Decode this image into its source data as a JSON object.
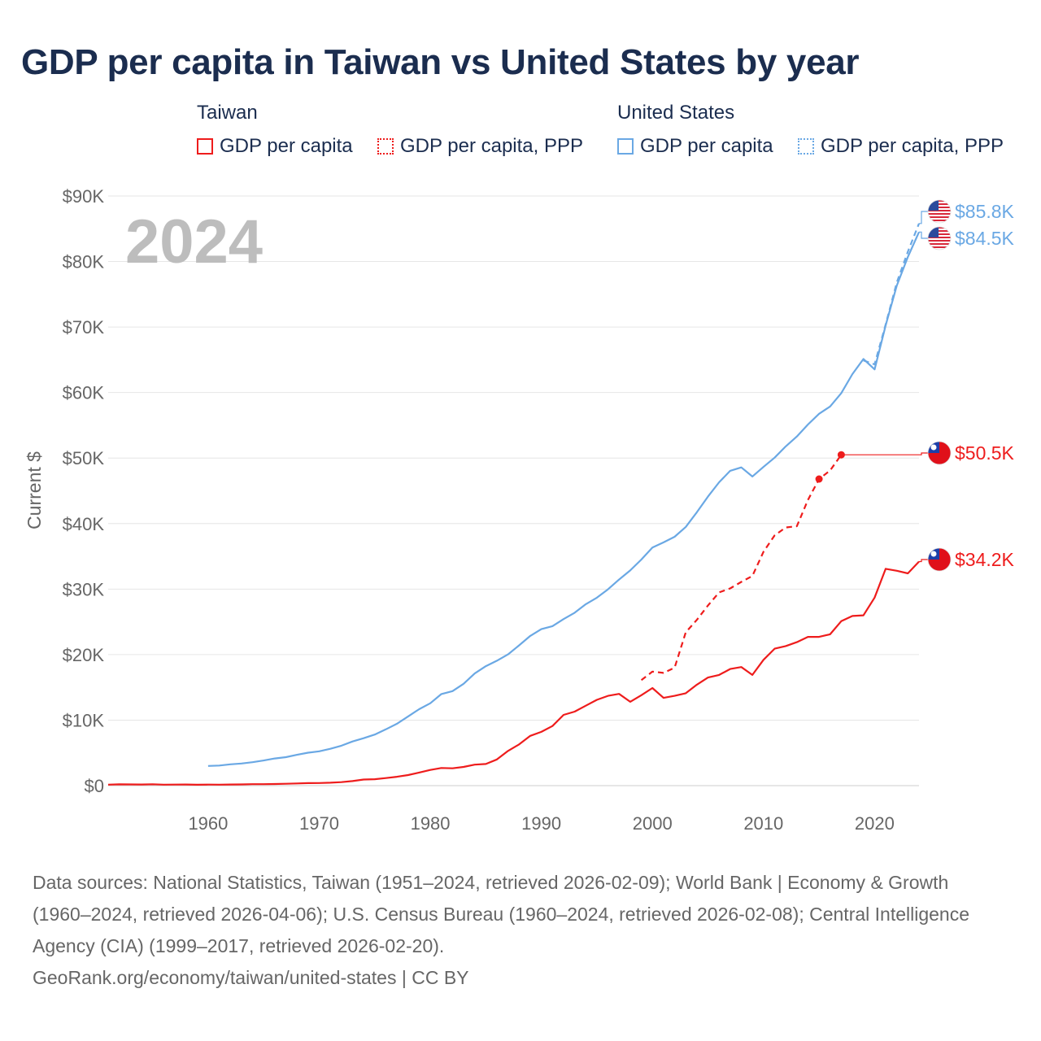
{
  "title": "GDP per capita in Taiwan vs United States by year",
  "legend": {
    "groups": [
      {
        "name": "Taiwan",
        "items": [
          "GDP per capita",
          "GDP per capita, PPP"
        ]
      },
      {
        "name": "United States",
        "items": [
          "GDP per capita",
          "GDP per capita, PPP"
        ]
      }
    ]
  },
  "colors": {
    "taiwan": "#ee1c1c",
    "us": "#6aa8e4",
    "grid": "#e6e6e6",
    "year": "#bdbdbd"
  },
  "year_watermark": "2024",
  "footer": {
    "sources": "Data sources: National Statistics, Taiwan (1951–2024, retrieved 2026-02-09); World Bank | Economy & Growth (1960–2024, retrieved 2026-04-06); U.S. Census Bureau (1960–2024, retrieved 2026-02-08); Central Intelligence Agency (CIA) (1999–2017, retrieved 2026-02-20).",
    "credit": "GeoRank.org/economy/taiwan/united-states | CC BY"
  },
  "chart_data": {
    "type": "line",
    "title": "GDP per capita in Taiwan vs United States by year",
    "ylabel": "Current $",
    "xlabel": "",
    "xlim": [
      1951,
      2024
    ],
    "ylim": [
      0,
      90000
    ],
    "x_ticks": [
      1960,
      1970,
      1980,
      1990,
      2000,
      2010,
      2020
    ],
    "x_tick_labels": [
      "1960",
      "1970",
      "1980",
      "1990",
      "2000",
      "2010",
      "2020"
    ],
    "y_ticks": [
      0,
      10000,
      20000,
      30000,
      40000,
      50000,
      60000,
      70000,
      80000,
      90000
    ],
    "y_tick_labels": [
      "$0",
      "$10K",
      "$20K",
      "$30K",
      "$40K",
      "$50K",
      "$60K",
      "$70K",
      "$80K",
      "$90K"
    ],
    "grid": true,
    "legend_position": "top",
    "series": [
      {
        "name": "Taiwan GDP per capita",
        "country": "Taiwan",
        "style": "solid",
        "color": "#ee1c1c",
        "end_label": "$34.2K",
        "points": [
          [
            1951,
            150
          ],
          [
            1952,
            200
          ],
          [
            1953,
            180
          ],
          [
            1954,
            170
          ],
          [
            1955,
            210
          ],
          [
            1956,
            150
          ],
          [
            1957,
            160
          ],
          [
            1958,
            170
          ],
          [
            1959,
            140
          ],
          [
            1960,
            160
          ],
          [
            1961,
            150
          ],
          [
            1962,
            170
          ],
          [
            1963,
            190
          ],
          [
            1964,
            220
          ],
          [
            1965,
            220
          ],
          [
            1966,
            250
          ],
          [
            1967,
            290
          ],
          [
            1968,
            330
          ],
          [
            1969,
            380
          ],
          [
            1970,
            400
          ],
          [
            1971,
            450
          ],
          [
            1972,
            530
          ],
          [
            1973,
            700
          ],
          [
            1974,
            930
          ],
          [
            1975,
            980
          ],
          [
            1976,
            1160
          ],
          [
            1977,
            1350
          ],
          [
            1978,
            1620
          ],
          [
            1979,
            2000
          ],
          [
            1980,
            2400
          ],
          [
            1981,
            2700
          ],
          [
            1982,
            2650
          ],
          [
            1983,
            2850
          ],
          [
            1984,
            3200
          ],
          [
            1985,
            3300
          ],
          [
            1986,
            4000
          ],
          [
            1987,
            5300
          ],
          [
            1988,
            6300
          ],
          [
            1989,
            7600
          ],
          [
            1990,
            8200
          ],
          [
            1991,
            9100
          ],
          [
            1992,
            10800
          ],
          [
            1993,
            11300
          ],
          [
            1994,
            12200
          ],
          [
            1995,
            13100
          ],
          [
            1996,
            13700
          ],
          [
            1997,
            14000
          ],
          [
            1998,
            12800
          ],
          [
            1999,
            13800
          ],
          [
            2000,
            14900
          ],
          [
            2001,
            13400
          ],
          [
            2002,
            13700
          ],
          [
            2003,
            14100
          ],
          [
            2004,
            15400
          ],
          [
            2005,
            16500
          ],
          [
            2006,
            16900
          ],
          [
            2007,
            17800
          ],
          [
            2008,
            18100
          ],
          [
            2009,
            16900
          ],
          [
            2010,
            19200
          ],
          [
            2011,
            20900
          ],
          [
            2012,
            21300
          ],
          [
            2013,
            21900
          ],
          [
            2014,
            22700
          ],
          [
            2015,
            22700
          ],
          [
            2016,
            23100
          ],
          [
            2017,
            25100
          ],
          [
            2018,
            25900
          ],
          [
            2019,
            26000
          ],
          [
            2020,
            28700
          ],
          [
            2021,
            33100
          ],
          [
            2022,
            32800
          ],
          [
            2023,
            32400
          ],
          [
            2024,
            34200
          ]
        ]
      },
      {
        "name": "Taiwan GDP per capita, PPP",
        "country": "Taiwan",
        "style": "dashed",
        "color": "#ee1c1c",
        "end_label": "$50.5K",
        "points": [
          [
            1999,
            16100
          ],
          [
            2000,
            17400
          ],
          [
            2001,
            17200
          ],
          [
            2002,
            18000
          ],
          [
            2003,
            23400
          ],
          [
            2004,
            25300
          ],
          [
            2005,
            27500
          ],
          [
            2006,
            29500
          ],
          [
            2007,
            30100
          ],
          [
            2008,
            31100
          ],
          [
            2009,
            32000
          ],
          [
            2010,
            35700
          ],
          [
            2011,
            38200
          ],
          [
            2012,
            39400
          ],
          [
            2013,
            39600
          ],
          [
            2014,
            43600
          ],
          [
            2015,
            46800
          ],
          [
            2016,
            48100
          ],
          [
            2017,
            50500
          ]
        ],
        "markers": [
          [
            2015,
            46800
          ],
          [
            2017,
            50500
          ]
        ]
      },
      {
        "name": "United States GDP per capita",
        "country": "United States",
        "style": "solid",
        "color": "#6aa8e4",
        "end_label": "$84.5K",
        "points": [
          [
            1960,
            3000
          ],
          [
            1961,
            3070
          ],
          [
            1962,
            3250
          ],
          [
            1963,
            3380
          ],
          [
            1964,
            3570
          ],
          [
            1965,
            3830
          ],
          [
            1966,
            4150
          ],
          [
            1967,
            4340
          ],
          [
            1968,
            4700
          ],
          [
            1969,
            5030
          ],
          [
            1970,
            5240
          ],
          [
            1971,
            5620
          ],
          [
            1972,
            6100
          ],
          [
            1973,
            6740
          ],
          [
            1974,
            7240
          ],
          [
            1975,
            7800
          ],
          [
            1976,
            8590
          ],
          [
            1977,
            9450
          ],
          [
            1978,
            10560
          ],
          [
            1979,
            11670
          ],
          [
            1980,
            12570
          ],
          [
            1981,
            13980
          ],
          [
            1982,
            14430
          ],
          [
            1983,
            15540
          ],
          [
            1984,
            17120
          ],
          [
            1985,
            18240
          ],
          [
            1986,
            19070
          ],
          [
            1987,
            20040
          ],
          [
            1988,
            21420
          ],
          [
            1989,
            22860
          ],
          [
            1990,
            23890
          ],
          [
            1991,
            24340
          ],
          [
            1992,
            25420
          ],
          [
            1993,
            26390
          ],
          [
            1994,
            27690
          ],
          [
            1995,
            28690
          ],
          [
            1996,
            29970
          ],
          [
            1997,
            31460
          ],
          [
            1998,
            32850
          ],
          [
            1999,
            34510
          ],
          [
            2000,
            36330
          ],
          [
            2001,
            37130
          ],
          [
            2002,
            37990
          ],
          [
            2003,
            39490
          ],
          [
            2004,
            41720
          ],
          [
            2005,
            44120
          ],
          [
            2006,
            46300
          ],
          [
            2007,
            48050
          ],
          [
            2008,
            48570
          ],
          [
            2009,
            47190
          ],
          [
            2010,
            48650
          ],
          [
            2011,
            50070
          ],
          [
            2012,
            51780
          ],
          [
            2013,
            53290
          ],
          [
            2014,
            55120
          ],
          [
            2015,
            56760
          ],
          [
            2016,
            57870
          ],
          [
            2017,
            59910
          ],
          [
            2018,
            62820
          ],
          [
            2019,
            65120
          ],
          [
            2020,
            63530
          ],
          [
            2021,
            70250
          ],
          [
            2022,
            76330
          ],
          [
            2023,
            80700
          ],
          [
            2024,
            84500
          ]
        ]
      },
      {
        "name": "United States GDP per capita, PPP",
        "country": "United States",
        "style": "dashed",
        "color": "#6aa8e4",
        "end_label": "$85.8K",
        "points": [
          [
            2019,
            64900
          ],
          [
            2020,
            64300
          ],
          [
            2021,
            70400
          ],
          [
            2022,
            76800
          ],
          [
            2023,
            81500
          ],
          [
            2024,
            85800
          ]
        ]
      }
    ]
  }
}
